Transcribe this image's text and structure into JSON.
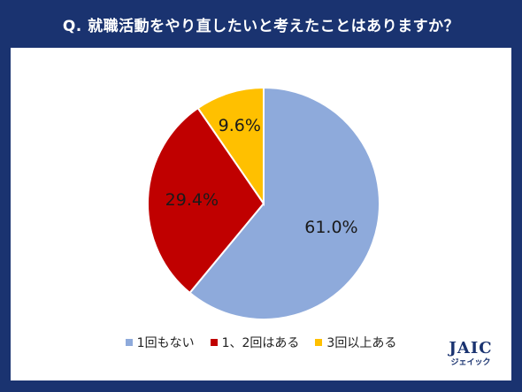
{
  "header": {
    "question": "Q. 就職活動をやり直したいと考えたことはありますか？"
  },
  "chart_data": {
    "type": "pie",
    "slices": [
      {
        "label": "1回もない",
        "value": 61.0,
        "value_label": "61.0%",
        "color": "#8eaadb"
      },
      {
        "label": "1、2回はある",
        "value": 29.4,
        "value_label": "29.4%",
        "color": "#c00000"
      },
      {
        "label": "3回以上ある",
        "value": 9.6,
        "value_label": "9.6%",
        "color": "#ffc000"
      }
    ],
    "start_angle": "12 o'clock",
    "direction": "clockwise",
    "legend_position": "bottom"
  },
  "logo": {
    "text": "JAIC",
    "sub_text": "ジェイック"
  },
  "colors": {
    "frame": "#1a3370",
    "background": "#ffffff"
  }
}
